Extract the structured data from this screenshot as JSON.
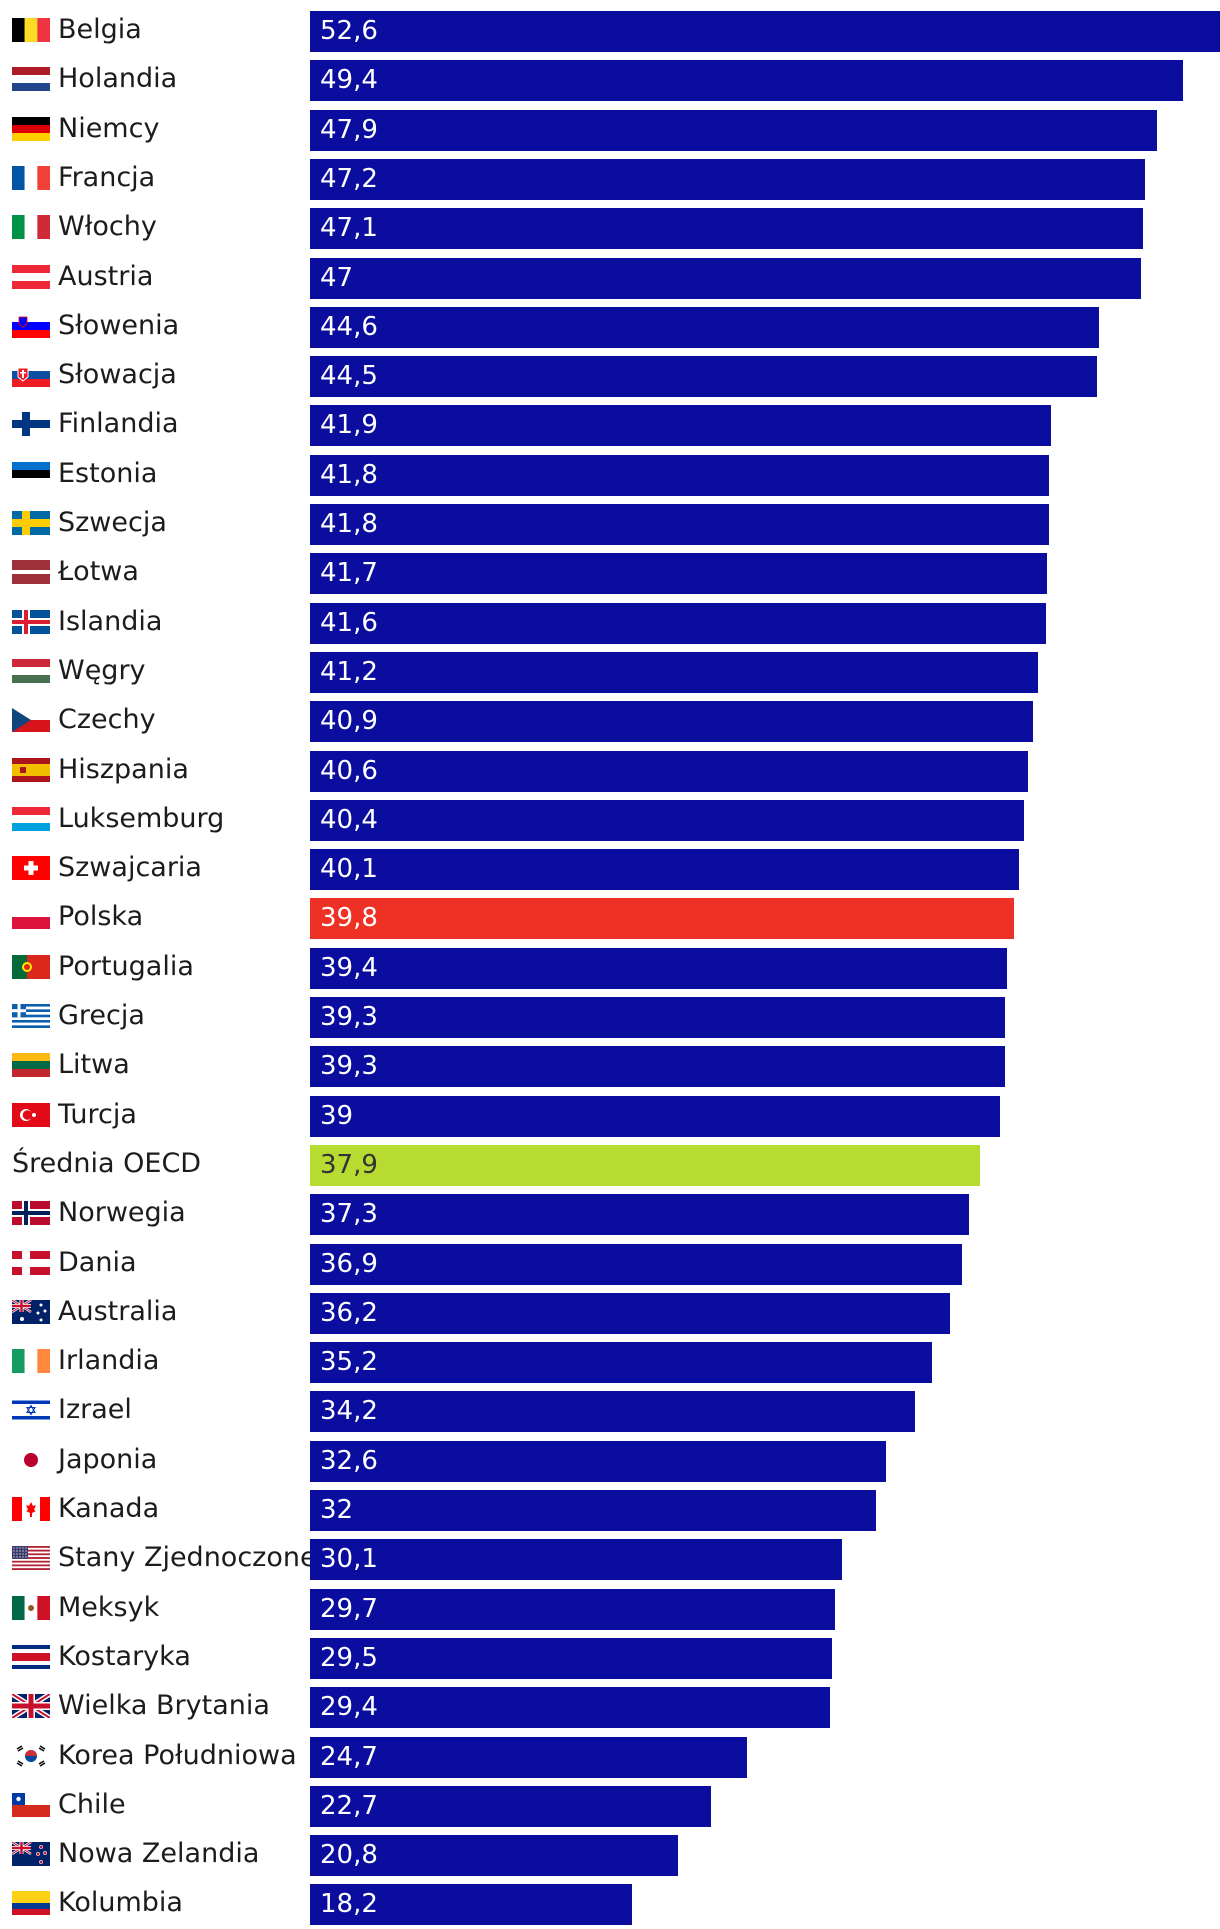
{
  "colors": {
    "default": "#0a0d9e",
    "highlight": "#ee3124",
    "average": "#b6dc32",
    "value_text": "#ffffff",
    "average_text": "#333333"
  },
  "chart_data": {
    "type": "bar",
    "orientation": "horizontal",
    "xlim": [
      0,
      52.6
    ],
    "categories": [
      "Belgia",
      "Holandia",
      "Niemcy",
      "Francja",
      "Włochy",
      "Austria",
      "Słowenia",
      "Słowacja",
      "Finlandia",
      "Estonia",
      "Szwecja",
      "Łotwa",
      "Islandia",
      "Węgry",
      "Czechy",
      "Hiszpania",
      "Luksemburg",
      "Szwajcaria",
      "Polska",
      "Portugalia",
      "Grecja",
      "Litwa",
      "Turcja",
      "Średnia OECD",
      "Norwegia",
      "Dania",
      "Australia",
      "Irlandia",
      "Izrael",
      "Japonia",
      "Kanada",
      "Stany Zjednoczone",
      "Meksyk",
      "Kostaryka",
      "Wielka Brytania",
      "Korea Południowa",
      "Chile",
      "Nowa Zelandia",
      "Kolumbia"
    ],
    "values": [
      52.6,
      49.4,
      47.9,
      47.2,
      47.1,
      47,
      44.6,
      44.5,
      41.9,
      41.8,
      41.8,
      41.7,
      41.6,
      41.2,
      40.9,
      40.6,
      40.4,
      40.1,
      39.8,
      39.4,
      39.3,
      39.3,
      39,
      37.9,
      37.3,
      36.9,
      36.2,
      35.2,
      34.2,
      32.6,
      32,
      30.1,
      29.7,
      29.5,
      29.4,
      24.7,
      22.7,
      20.8,
      18.2
    ],
    "value_labels": [
      "52,6",
      "49,4",
      "47,9",
      "47,2",
      "47,1",
      "47",
      "44,6",
      "44,5",
      "41,9",
      "41,8",
      "41,8",
      "41,7",
      "41,6",
      "41,2",
      "40,9",
      "40,6",
      "40,4",
      "40,1",
      "39,8",
      "39,4",
      "39,3",
      "39,3",
      "39",
      "37,9",
      "37,3",
      "36,9",
      "36,2",
      "35,2",
      "34,2",
      "32,6",
      "32",
      "30,1",
      "29,7",
      "29,5",
      "29,4",
      "24,7",
      "22,7",
      "20,8",
      "18,2"
    ],
    "flags": [
      "belgium-flag-icon",
      "netherlands-flag-icon",
      "germany-flag-icon",
      "france-flag-icon",
      "italy-flag-icon",
      "austria-flag-icon",
      "slovenia-flag-icon",
      "slovakia-flag-icon",
      "finland-flag-icon",
      "estonia-flag-icon",
      "sweden-flag-icon",
      "latvia-flag-icon",
      "iceland-flag-icon",
      "hungary-flag-icon",
      "czechia-flag-icon",
      "spain-flag-icon",
      "luxembourg-flag-icon",
      "switzerland-flag-icon",
      "poland-flag-icon",
      "portugal-flag-icon",
      "greece-flag-icon",
      "lithuania-flag-icon",
      "turkey-flag-icon",
      "",
      "norway-flag-icon",
      "denmark-flag-icon",
      "australia-flag-icon",
      "ireland-flag-icon",
      "israel-flag-icon",
      "japan-flag-icon",
      "canada-flag-icon",
      "usa-flag-icon",
      "mexico-flag-icon",
      "costa-rica-flag-icon",
      "uk-flag-icon",
      "south-korea-flag-icon",
      "chile-flag-icon",
      "new-zealand-flag-icon",
      "colombia-flag-icon"
    ],
    "highlight_category": "Polska",
    "average_category": "Średnia OECD",
    "title": "",
    "xlabel": "",
    "ylabel": ""
  }
}
